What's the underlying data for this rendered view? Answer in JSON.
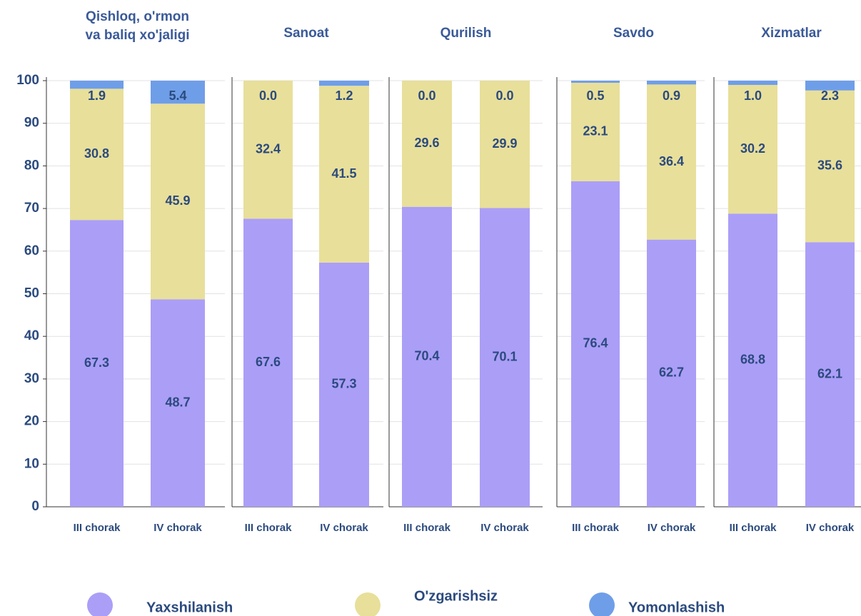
{
  "chart_data": [
    {
      "type": "stacked_bar",
      "title": [
        "Qishloq, o'rmon",
        "va baliq xo'jaligi"
      ],
      "categories": [
        "III chorak",
        "IV chorak"
      ],
      "series": [
        {
          "name": "Yaxshilanish",
          "color": "#ab9ef7",
          "values": [
            67.3,
            48.7
          ],
          "value_labels": [
            "67.3",
            "48.7"
          ]
        },
        {
          "name": "O'zgarishsiz",
          "color": "#e8df9a",
          "values": [
            30.8,
            45.9
          ],
          "value_labels": [
            "30.8",
            "45.9"
          ]
        },
        {
          "name": "Yomonlashish",
          "color": "#6f9ee8",
          "values": [
            1.9,
            5.4
          ],
          "value_labels": [
            "1.9",
            "5.4"
          ]
        }
      ],
      "ylim": [
        0,
        100
      ],
      "yticks": [
        0,
        10,
        20,
        30,
        40,
        50,
        60,
        70,
        80,
        90,
        100
      ],
      "grid": true
    },
    {
      "type": "stacked_bar",
      "title": "Sanoat",
      "categories": [
        "III chorak",
        "IV chorak"
      ],
      "series": [
        {
          "name": "Yaxshilanish",
          "color": "#ab9ef7",
          "values": [
            67.6,
            57.3
          ],
          "value_labels": [
            "67.6",
            "57.3"
          ]
        },
        {
          "name": "O'zgarishsiz",
          "color": "#e8df9a",
          "values": [
            32.4,
            41.5
          ],
          "value_labels": [
            "32.4",
            "41.5"
          ]
        },
        {
          "name": "Yomonlashish",
          "color": "#6f9ee8",
          "values": [
            0.0,
            1.2
          ],
          "value_labels": [
            "0.0",
            "1.2"
          ]
        }
      ],
      "ylim": [
        0,
        100
      ],
      "grid": true
    },
    {
      "type": "stacked_bar",
      "title": "Qurilish",
      "categories": [
        "III chorak",
        "IV chorak"
      ],
      "series": [
        {
          "name": "Yaxshilanish",
          "color": "#ab9ef7",
          "values": [
            70.4,
            70.1
          ],
          "value_labels": [
            "70.4",
            "70.1"
          ]
        },
        {
          "name": "O'zgarishsiz",
          "color": "#e8df9a",
          "values": [
            29.6,
            29.9
          ],
          "value_labels": [
            "29.6",
            "29.9"
          ]
        },
        {
          "name": "Yomonlashish",
          "color": "#6f9ee8",
          "values": [
            0.0,
            0.0
          ],
          "value_labels": [
            "0.0",
            "0.0"
          ]
        }
      ],
      "ylim": [
        0,
        100
      ],
      "grid": true
    },
    {
      "type": "stacked_bar",
      "title": "Savdo",
      "categories": [
        "III chorak",
        "IV chorak"
      ],
      "series": [
        {
          "name": "Yaxshilanish",
          "color": "#ab9ef7",
          "values": [
            76.4,
            62.7
          ],
          "value_labels": [
            "76.4",
            "62.7"
          ]
        },
        {
          "name": "O'zgarishsiz",
          "color": "#e8df9a",
          "values": [
            23.1,
            36.4
          ],
          "value_labels": [
            "23.1",
            "36.4"
          ]
        },
        {
          "name": "Yomonlashish",
          "color": "#6f9ee8",
          "values": [
            0.5,
            0.9
          ],
          "value_labels": [
            "0.5",
            "0.9"
          ]
        }
      ],
      "ylim": [
        0,
        100
      ],
      "grid": true
    },
    {
      "type": "stacked_bar",
      "title": "Xizmatlar",
      "categories": [
        "III chorak",
        "IV chorak"
      ],
      "series": [
        {
          "name": "Yaxshilanish",
          "color": "#ab9ef7",
          "values": [
            68.8,
            62.1
          ],
          "value_labels": [
            "68.8",
            "62.1"
          ]
        },
        {
          "name": "O'zgarishsiz",
          "color": "#e8df9a",
          "values": [
            30.2,
            35.6
          ],
          "value_labels": [
            "30.2",
            "35.6"
          ]
        },
        {
          "name": "Yomonlashish",
          "color": "#6f9ee8",
          "values": [
            1.0,
            2.3
          ],
          "value_labels": [
            "1.0",
            "2.3"
          ]
        }
      ],
      "ylim": [
        0,
        100
      ],
      "grid": true
    }
  ]
}
